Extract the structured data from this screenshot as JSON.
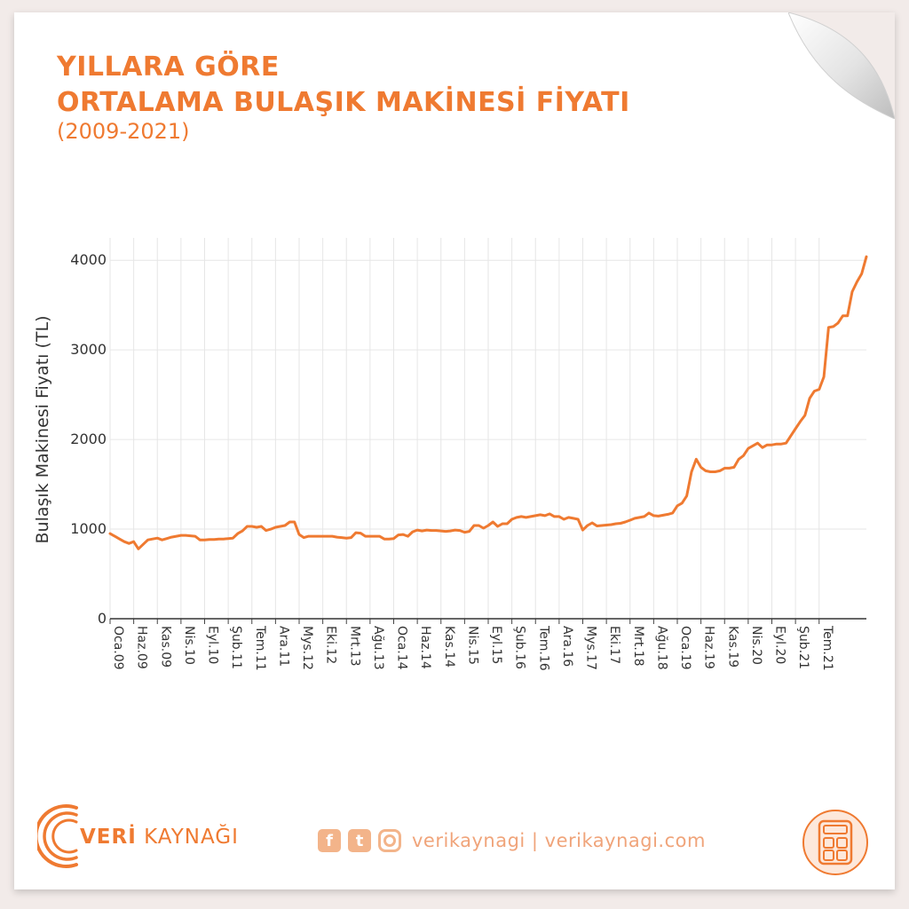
{
  "header": {
    "title_line1": "YILLARA GÖRE",
    "title_line2": "ORTALAMA BULAŞIK MAKİNESİ FİYATI",
    "subtitle": "(2009-2021)"
  },
  "colors": {
    "accent": "#ef7a31",
    "line": "#ef7a31",
    "grid": "#e6e6e6",
    "background": "#f2ebe9"
  },
  "chart_data": {
    "type": "line",
    "ylabel": "Bulaşık Makinesi Fiyatı (TL)",
    "xlabel": "",
    "ylim": [
      0,
      4250
    ],
    "yticks": [
      0,
      1000,
      2000,
      3000,
      4000
    ],
    "grid": true,
    "x_tick_labels": [
      "Oca.09",
      "Haz.09",
      "Kas.09",
      "Nis.10",
      "Eyl.10",
      "Şub.11",
      "Tem.11",
      "Ara.11",
      "Mys.12",
      "Eki.12",
      "Mrt.13",
      "Ağu.13",
      "Oca.14",
      "Haz.14",
      "Kas.14",
      "Nis.15",
      "Eyl.15",
      "Şub.16",
      "Tem.16",
      "Ara.16",
      "Mys.17",
      "Eki.17",
      "Mrt.18",
      "Ağu.18",
      "Oca.19",
      "Haz.19",
      "Kas.19",
      "Nis.20",
      "Eyl.20",
      "Şub.21",
      "Tem.21"
    ],
    "series": [
      {
        "name": "",
        "values": [
          950,
          920,
          890,
          860,
          840,
          860,
          780,
          830,
          880,
          890,
          900,
          880,
          895,
          910,
          920,
          930,
          930,
          925,
          920,
          880,
          880,
          885,
          885,
          890,
          890,
          895,
          900,
          950,
          980,
          1030,
          1030,
          1020,
          1030,
          985,
          1000,
          1020,
          1030,
          1040,
          1080,
          1080,
          940,
          905,
          920,
          920,
          920,
          920,
          920,
          920,
          910,
          905,
          900,
          905,
          960,
          955,
          920,
          920,
          920,
          920,
          890,
          890,
          895,
          935,
          940,
          920,
          970,
          990,
          980,
          990,
          985,
          985,
          980,
          975,
          980,
          990,
          985,
          965,
          975,
          1040,
          1040,
          1010,
          1040,
          1080,
          1030,
          1060,
          1060,
          1110,
          1130,
          1140,
          1130,
          1140,
          1150,
          1160,
          1150,
          1170,
          1140,
          1140,
          1110,
          1130,
          1120,
          1110,
          990,
          1040,
          1070,
          1035,
          1040,
          1045,
          1050,
          1060,
          1065,
          1080,
          1100,
          1120,
          1130,
          1140,
          1180,
          1150,
          1145,
          1155,
          1165,
          1180,
          1260,
          1290,
          1370,
          1640,
          1780,
          1690,
          1650,
          1640,
          1640,
          1650,
          1680,
          1680,
          1690,
          1780,
          1820,
          1900,
          1930,
          1960,
          1910,
          1940,
          1940,
          1950,
          1950,
          1960,
          2040,
          2120,
          2200,
          2270,
          2460,
          2540,
          2560,
          2700,
          3250,
          3260,
          3300,
          3380,
          3380,
          3650,
          3760,
          3850,
          4040
        ]
      }
    ]
  },
  "footer": {
    "brand_bold": "VERİ",
    "brand_rest": " KAYNAĞI",
    "social_text": "verikaynagi | verikaynagi.com",
    "social_icons": [
      "facebook-icon",
      "twitter-icon",
      "instagram-icon"
    ],
    "badge_icon": "calculator-icon"
  }
}
